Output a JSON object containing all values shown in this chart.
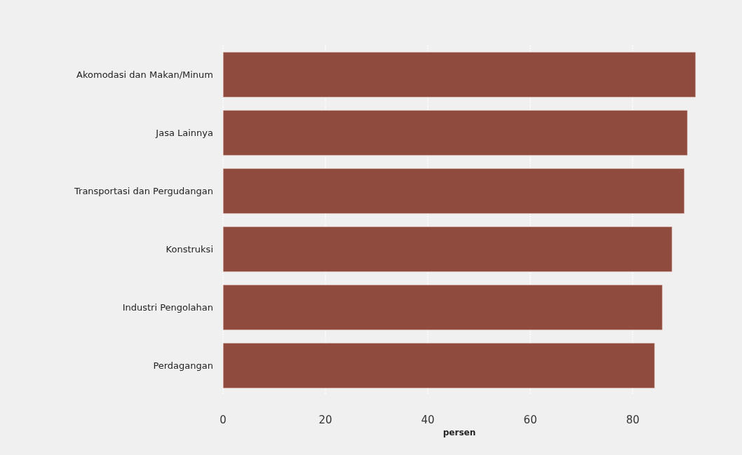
{
  "chart_data": {
    "type": "bar",
    "orientation": "horizontal",
    "xlabel": "persen",
    "categories": [
      "Akomodasi dan Makan/Minum",
      "Jasa Lainnya",
      "Transportasi dan Pergudangan",
      "Konstruksi",
      "Industri Pengolahan",
      "Perdagangan"
    ],
    "values": [
      92.3,
      90.7,
      90.1,
      87.7,
      85.8,
      84.3
    ],
    "color": "#8e4b3e",
    "xlim": [
      0,
      92.3
    ],
    "xticks": [
      0,
      20,
      40,
      60,
      80
    ],
    "grid": "x"
  }
}
